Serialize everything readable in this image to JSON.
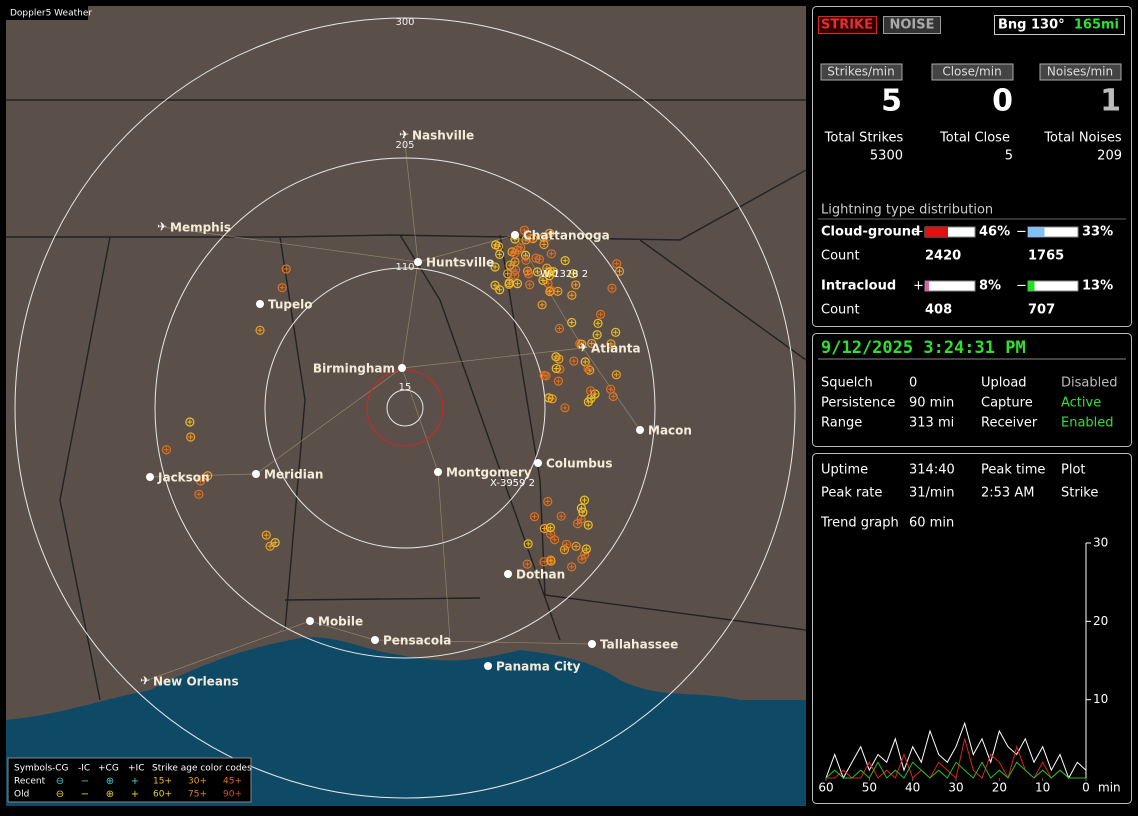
{
  "map": {
    "title": "Doppler5 Weather",
    "range_labels": [
      "300",
      "205",
      "110",
      "15"
    ],
    "cities": [
      "Nashville",
      "Memphis",
      "Huntsville",
      "Chattanooga",
      "Tupelo",
      "Birmingham",
      "Atlanta",
      "Macon",
      "Jackson",
      "Meridian",
      "Montgomery",
      "Columbus",
      "Dothan",
      "Mobile",
      "Pensacola",
      "Tallahassee",
      "Panama City",
      "New Orleans"
    ],
    "strike_labels": [
      "W-1328 2",
      "X-3959 2"
    ],
    "legend": {
      "headers": [
        "Symbols",
        "-CG",
        "-IC",
        "+CG",
        "+IC",
        "Strike age color codes"
      ],
      "rows": [
        {
          "label": "Recent",
          "ages": [
            "15+",
            "30+",
            "45+"
          ]
        },
        {
          "label": "Old",
          "ages": [
            "60+",
            "75+",
            "90+"
          ]
        }
      ]
    }
  },
  "status": {
    "strike": "STRIKE",
    "noise": "NOISE",
    "bearing": "Bng 130°",
    "distance": "165mi",
    "rates": [
      {
        "label": "Strikes/min",
        "value": 5,
        "total_label": "Total Strikes",
        "total": 5300
      },
      {
        "label": "Close/min",
        "value": 0,
        "total_label": "Total Close",
        "total": 5
      },
      {
        "label": "Noises/min",
        "value": 1,
        "total_label": "Total Noises",
        "total": 209
      }
    ],
    "distribution": {
      "title": "Lightning type distribution",
      "count_label": "Count",
      "rows": [
        {
          "label": "Cloud-ground",
          "plus": {
            "value": 46,
            "label": "46%",
            "count": 2420
          },
          "minus": {
            "value": 33,
            "label": "33%",
            "count": 1765
          }
        },
        {
          "label": "Intracloud",
          "plus": {
            "value": 8,
            "label": "8%",
            "count": 408
          },
          "minus": {
            "value": 13,
            "label": "13%",
            "count": 707
          }
        }
      ]
    }
  },
  "settings": {
    "datetime": "9/12/2025 3:24:31 PM",
    "rows": [
      [
        "Squelch",
        "0",
        "Upload",
        "Disabled"
      ],
      [
        "Persistence",
        "90 min",
        "Capture",
        "Active"
      ],
      [
        "Range",
        "313 mi",
        "Receiver",
        "Enabled"
      ]
    ]
  },
  "stats": {
    "rows": [
      [
        "Uptime",
        "314:40",
        "Peak time",
        "Plot"
      ],
      [
        "Peak rate",
        "31/min",
        "2:53 AM",
        "Strike"
      ]
    ],
    "trend_label": "Trend graph",
    "trend_value": "60 min"
  },
  "trend_chart": {
    "type": "line",
    "x_unit": "min",
    "x": [
      60,
      58,
      56,
      54,
      52,
      50,
      48,
      46,
      44,
      42,
      40,
      38,
      36,
      34,
      32,
      30,
      28,
      26,
      24,
      22,
      20,
      18,
      16,
      14,
      12,
      10,
      8,
      6,
      4,
      2,
      0
    ],
    "xlim": [
      60,
      0
    ],
    "xticks": [
      60,
      50,
      40,
      30,
      20,
      10,
      0
    ],
    "ylim": [
      0,
      30
    ],
    "yticks": [
      10,
      20,
      30
    ],
    "series": [
      {
        "color": "#ffffff",
        "values": [
          0,
          3,
          0,
          2,
          4,
          1,
          3,
          2,
          5,
          1,
          4,
          2,
          6,
          3,
          2,
          4,
          7,
          3,
          5,
          2,
          6,
          4,
          3,
          5,
          2,
          4,
          1,
          3,
          0,
          2,
          1
        ]
      },
      {
        "color": "#e02020",
        "values": [
          0,
          0,
          1,
          0,
          0,
          2,
          0,
          1,
          0,
          3,
          0,
          1,
          0,
          2,
          1,
          0,
          5,
          1,
          0,
          3,
          2,
          0,
          4,
          1,
          0,
          2,
          0,
          1,
          0,
          0,
          0
        ]
      },
      {
        "color": "#20c020",
        "values": [
          0,
          1,
          0,
          0,
          1,
          0,
          2,
          0,
          1,
          0,
          2,
          1,
          0,
          1,
          0,
          2,
          1,
          0,
          2,
          0,
          1,
          0,
          2,
          1,
          0,
          1,
          0,
          1,
          0,
          0,
          0
        ]
      }
    ]
  }
}
